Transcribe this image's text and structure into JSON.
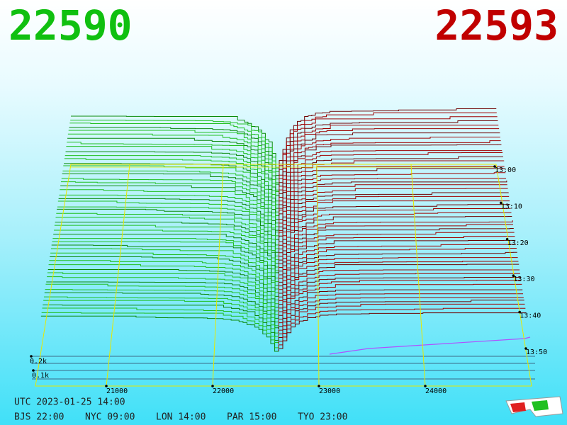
{
  "header": {
    "bid": "22590",
    "ask": "22593"
  },
  "price_axis": [
    "21000",
    "22000",
    "23000",
    "24000"
  ],
  "volume_axis": [
    "0.2k",
    "0.1k"
  ],
  "time_axis": [
    "13:00",
    "13:10",
    "13:20",
    "13:30",
    "13:40",
    "13:50"
  ],
  "footer": {
    "utc": "UTC 2023-01-25 14:00",
    "cities": [
      "BJS 22:00",
      "NYC 09:00",
      "LON 14:00",
      "PAR 15:00",
      "TYO 23:00"
    ]
  }
}
